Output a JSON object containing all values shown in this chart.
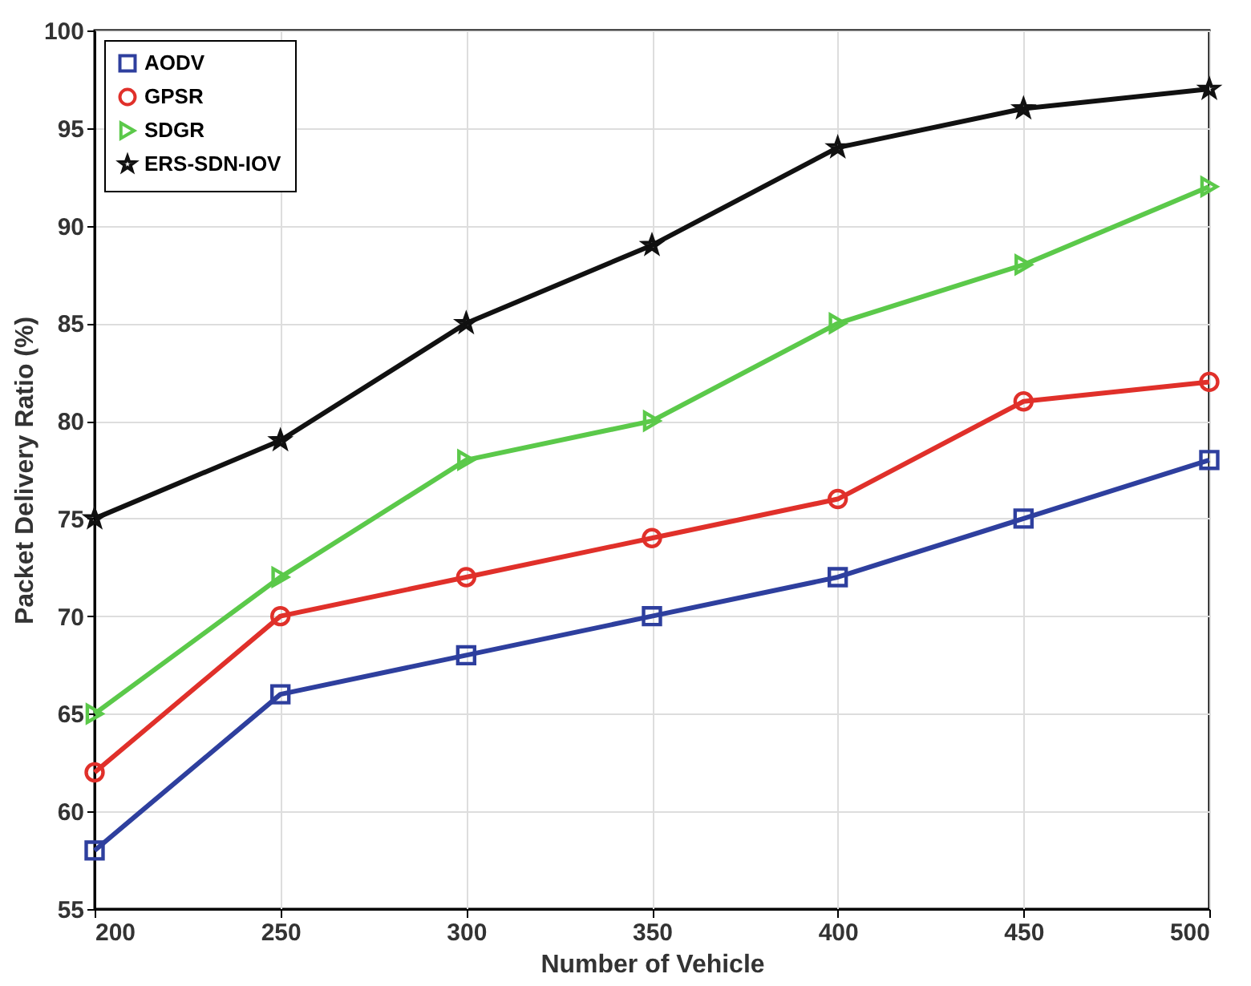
{
  "chart_data": {
    "type": "line",
    "xlabel": "Number of Vehicle",
    "ylabel": "Packet Delivery Ratio (%)",
    "x": [
      200,
      250,
      300,
      350,
      400,
      450,
      500
    ],
    "series": [
      {
        "name": "AODV",
        "color": "#2e3f9e",
        "marker": "square",
        "values": [
          58,
          66,
          68,
          70,
          72,
          75,
          78
        ]
      },
      {
        "name": "GPSR",
        "color": "#e0302a",
        "marker": "circle",
        "values": [
          62,
          70,
          72,
          74,
          76,
          81,
          82
        ]
      },
      {
        "name": "SDGR",
        "color": "#5bc94a",
        "marker": "triangle",
        "values": [
          65,
          72,
          78,
          80,
          85,
          88,
          92
        ]
      },
      {
        "name": "ERS-SDN-IOV",
        "color": "#111111",
        "marker": "star",
        "values": [
          75,
          79,
          85,
          89,
          94,
          96,
          97
        ]
      }
    ],
    "xlim": [
      200,
      500
    ],
    "xticks": [
      200,
      250,
      300,
      350,
      400,
      450,
      500
    ],
    "ylim": [
      55,
      100
    ],
    "yticks": [
      55,
      60,
      65,
      70,
      75,
      80,
      85,
      90,
      95,
      100
    ],
    "grid": true,
    "legend": "top left",
    "line_style": "solid"
  }
}
